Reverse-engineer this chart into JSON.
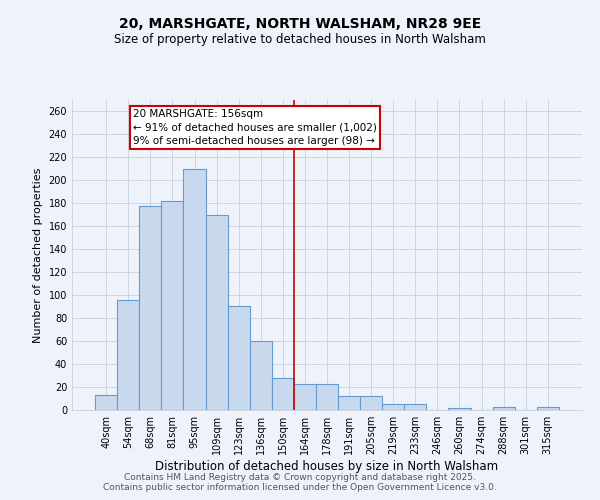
{
  "title": "20, MARSHGATE, NORTH WALSHAM, NR28 9EE",
  "subtitle": "Size of property relative to detached houses in North Walsham",
  "xlabel": "Distribution of detached houses by size in North Walsham",
  "ylabel": "Number of detached properties",
  "categories": [
    "40sqm",
    "54sqm",
    "68sqm",
    "81sqm",
    "95sqm",
    "109sqm",
    "123sqm",
    "136sqm",
    "150sqm",
    "164sqm",
    "178sqm",
    "191sqm",
    "205sqm",
    "219sqm",
    "233sqm",
    "246sqm",
    "260sqm",
    "274sqm",
    "288sqm",
    "301sqm",
    "315sqm"
  ],
  "bar_values": [
    13,
    96,
    178,
    182,
    210,
    170,
    91,
    60,
    28,
    23,
    23,
    12,
    12,
    5,
    5,
    0,
    2,
    0,
    3,
    0,
    3
  ],
  "bar_color": "#c8d9ee",
  "bar_edge_color": "#6699cc",
  "background_color": "#eef2fb",
  "plot_bg_color": "#eef2fb",
  "grid_color": "#c0c8d8",
  "vline_x": 8.5,
  "vline_color": "#cc0000",
  "annotation_title": "20 MARSHGATE: 156sqm",
  "annotation_line1": "← 91% of detached houses are smaller (1,002)",
  "annotation_line2": "9% of semi-detached houses are larger (98) →",
  "annotation_box_color": "#ffffff",
  "annotation_box_edge": "#cc0000",
  "ylim": [
    0,
    270
  ],
  "yticks": [
    0,
    20,
    40,
    60,
    80,
    100,
    120,
    140,
    160,
    180,
    200,
    220,
    240,
    260
  ],
  "footer1": "Contains HM Land Registry data © Crown copyright and database right 2025.",
  "footer2": "Contains public sector information licensed under the Open Government Licence v3.0.",
  "title_fontsize": 10,
  "subtitle_fontsize": 8.5,
  "xlabel_fontsize": 8.5,
  "ylabel_fontsize": 8,
  "tick_fontsize": 7,
  "footer_fontsize": 6.5,
  "annotation_fontsize": 7.5
}
